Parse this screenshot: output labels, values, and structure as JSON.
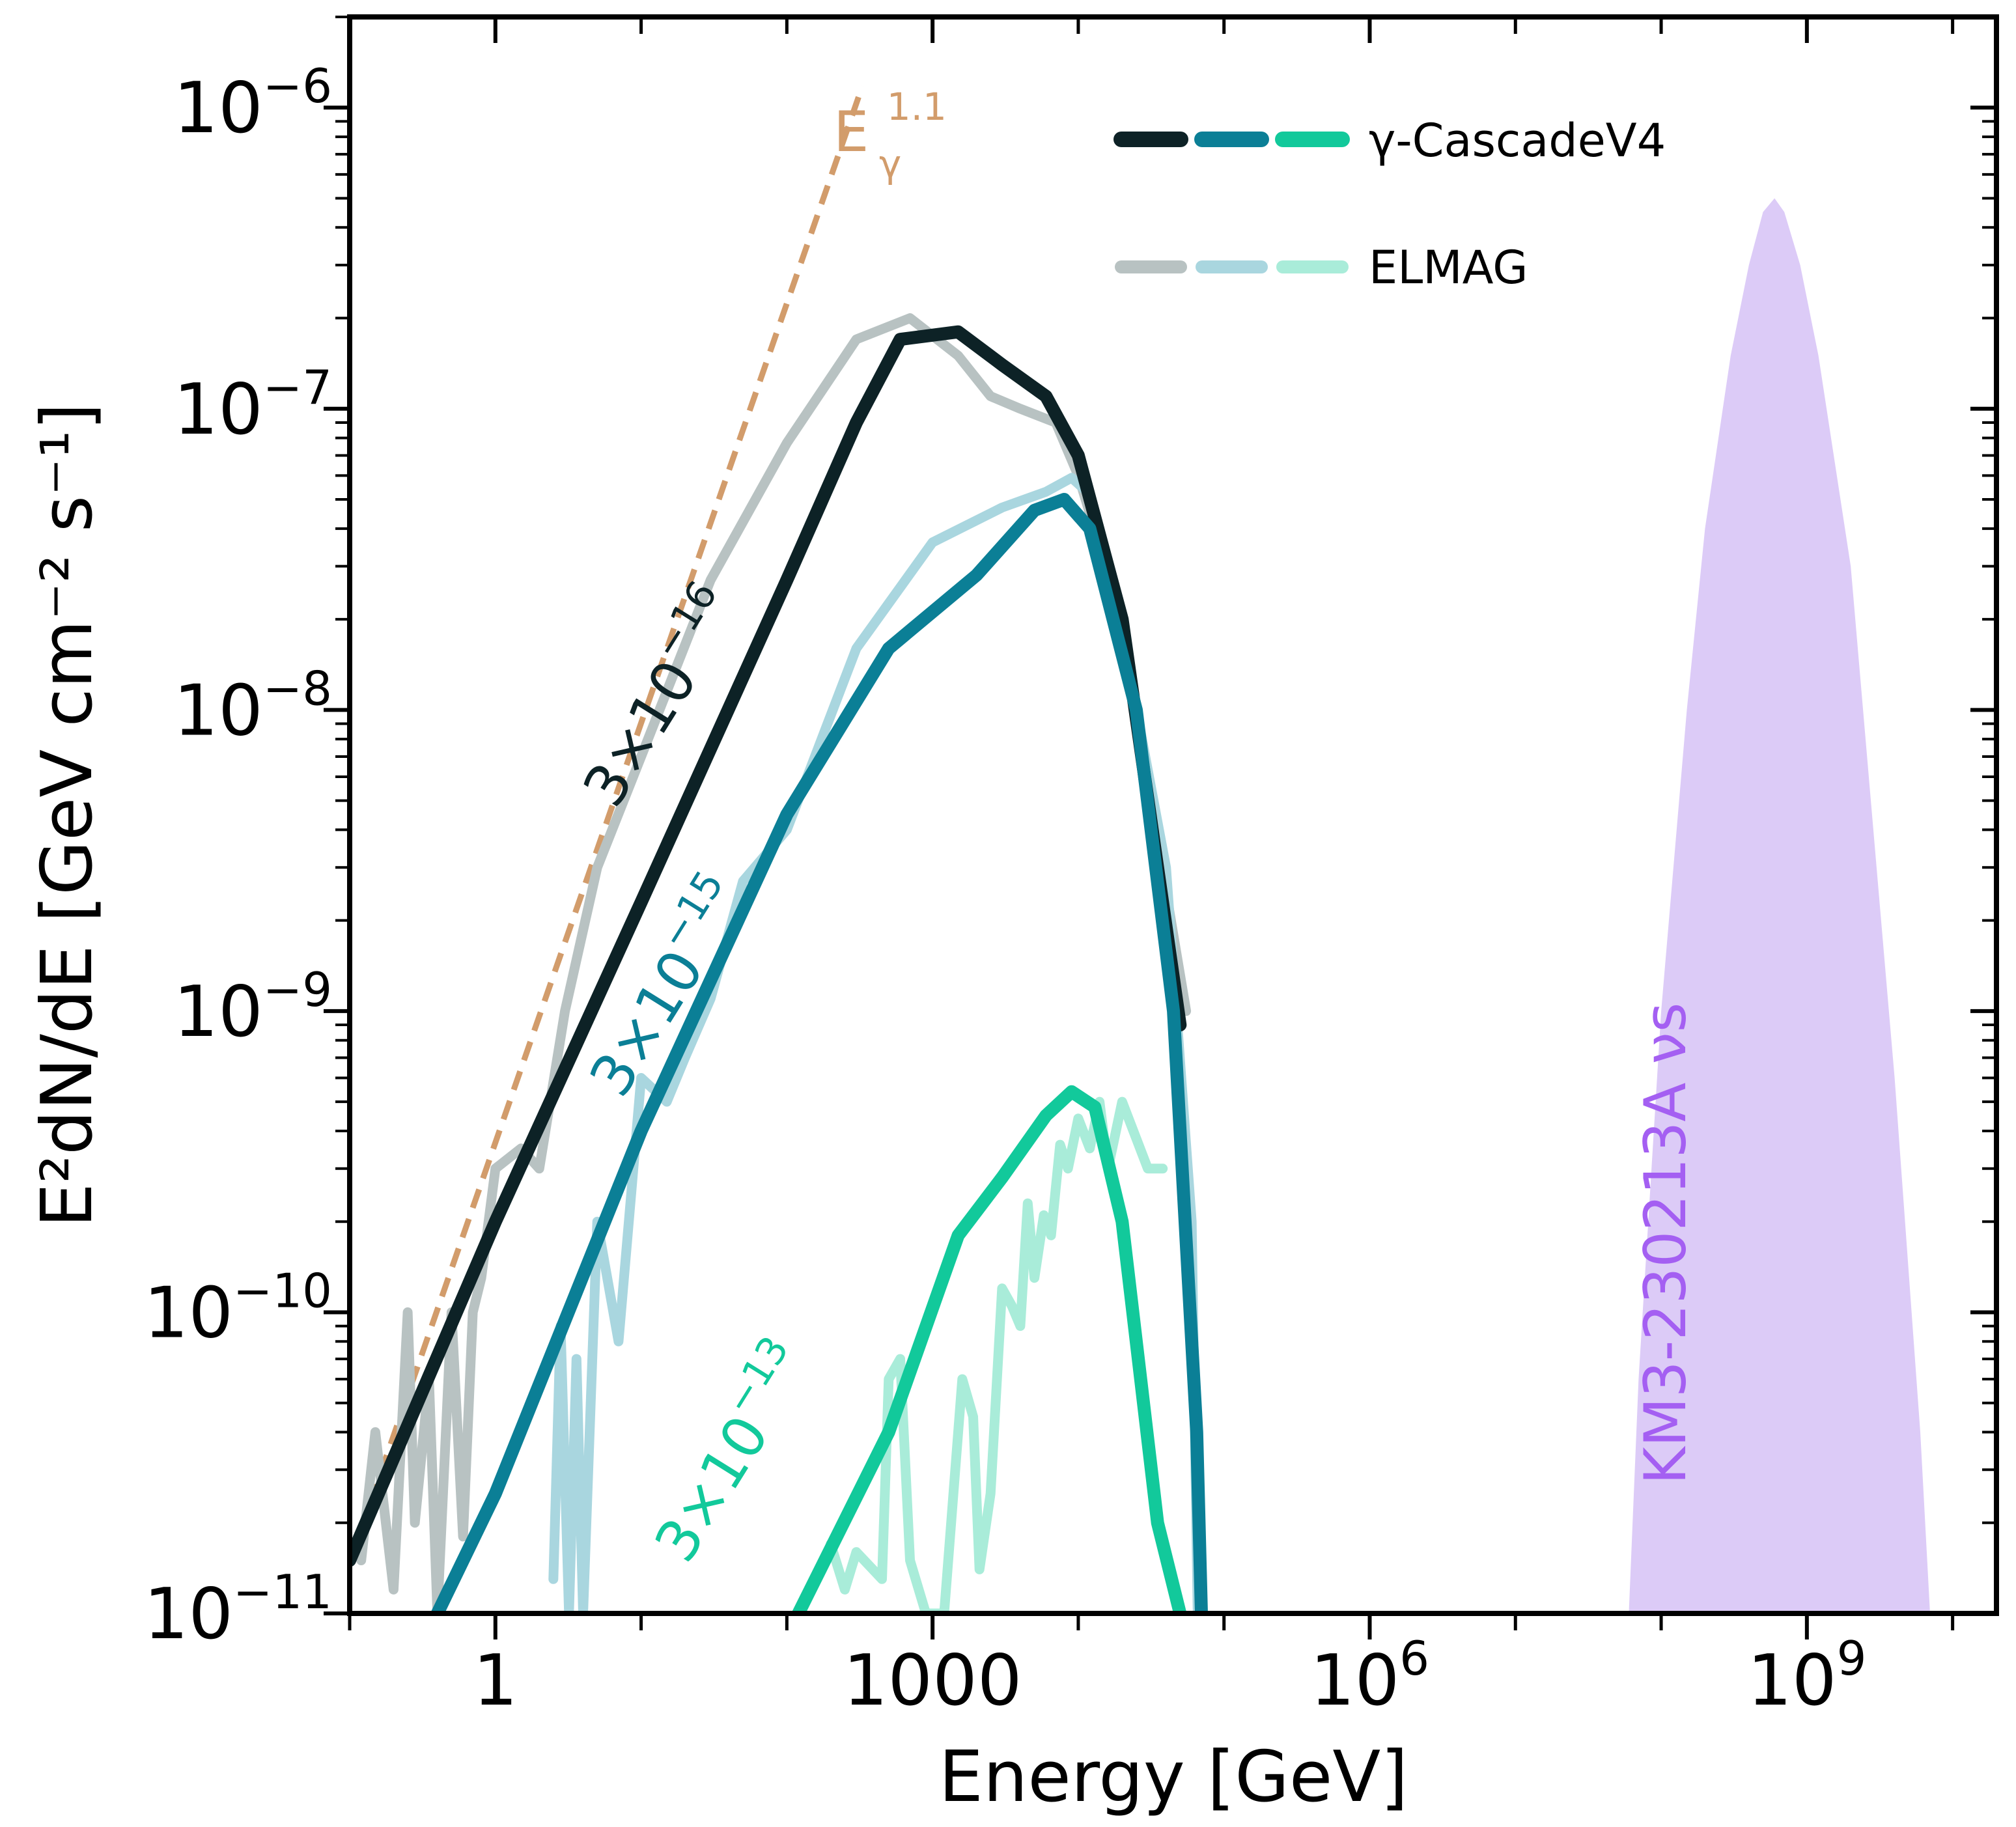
{
  "chart_data": {
    "type": "line",
    "xlabel": "Energy [GeV]",
    "ylabel": "E²dN/dE [GeV cm⁻² s⁻¹]",
    "x_scale": "log",
    "y_scale": "log",
    "xlim": [
      0.1,
      20000000000.0
    ],
    "ylim": [
      1e-11,
      2e-06
    ],
    "x_ticks": [
      {
        "value": 1,
        "label": "1",
        "sup": ""
      },
      {
        "value": 1000,
        "label": "1000",
        "sup": ""
      },
      {
        "value": 1000000,
        "label": "10",
        "sup": "6"
      },
      {
        "value": 1000000000,
        "label": "10",
        "sup": "9"
      }
    ],
    "y_ticks": [
      {
        "value": 1e-11,
        "label": "10",
        "sup": "−11"
      },
      {
        "value": 1e-10,
        "label": "10",
        "sup": "−10"
      },
      {
        "value": 1e-09,
        "label": "10",
        "sup": "−9"
      },
      {
        "value": 1e-08,
        "label": "10",
        "sup": "−8"
      },
      {
        "value": 1e-07,
        "label": "10",
        "sup": "−7"
      },
      {
        "value": 1e-06,
        "label": "10",
        "sup": "−6"
      }
    ],
    "legend": {
      "placement": "top-right",
      "entries": [
        {
          "label": "γ-CascadeV4",
          "colors": [
            "#0d2226",
            "#0b7f96",
            "#12c99b"
          ]
        },
        {
          "label": "ELMAG",
          "colors": [
            "#b8c2c2",
            "#a9d6df",
            "#a9ecd9"
          ]
        }
      ]
    },
    "reference_line": {
      "name": "E_γ^1.1 power law",
      "label_base": "E",
      "label_sub": "γ",
      "label_sup": "1.1",
      "color": "#d29c6b",
      "x": [
        0.1,
        330
      ],
      "y": [
        1.48e-11,
        1.18e-06
      ]
    },
    "series": [
      {
        "name": "γ-CascadeV4 3×10⁻¹⁶",
        "annotation": "3×10",
        "annotation_sup": "−16",
        "color": "#0d2226",
        "x": [
          0.1,
          1,
          10,
          100,
          300,
          600,
          1500,
          3000,
          6000,
          10000,
          20000,
          35000,
          50000
        ],
        "y": [
          1.5e-11,
          2e-10,
          2.3e-09,
          2.7e-08,
          9e-08,
          1.7e-07,
          1.8e-07,
          1.4e-07,
          1.1e-07,
          7e-08,
          2e-08,
          3e-09,
          9e-10
        ]
      },
      {
        "name": "γ-CascadeV4 3×10⁻¹⁵",
        "annotation": "3×10",
        "annotation_sup": "−15",
        "color": "#0b7f96",
        "x": [
          0.4,
          1,
          10,
          100,
          500,
          2000,
          5000,
          8000,
          12000,
          25000,
          45000,
          65000,
          70000
        ],
        "y": [
          1e-11,
          2.5e-11,
          4e-10,
          4.5e-09,
          1.6e-08,
          2.8e-08,
          4.6e-08,
          5e-08,
          4e-08,
          1e-08,
          1e-09,
          4e-11,
          1e-11
        ]
      },
      {
        "name": "γ-CascadeV4 3×10⁻¹³",
        "annotation": "3×10",
        "annotation_sup": "−13",
        "color": "#12c99b",
        "x": [
          120,
          500,
          1500,
          3000,
          6000,
          9000,
          13000,
          20000,
          35000,
          50000
        ],
        "y": [
          1e-11,
          4e-11,
          1.8e-10,
          2.8e-10,
          4.5e-10,
          5.4e-10,
          4.8e-10,
          2e-10,
          2e-11,
          1e-11
        ]
      },
      {
        "name": "ELMAG 3×10⁻¹⁶",
        "color": "#b8c2c2",
        "x": [
          0.12,
          0.15,
          0.2,
          0.25,
          0.28,
          0.35,
          0.4,
          0.5,
          0.6,
          0.7,
          0.8,
          1,
          1.5,
          2,
          3,
          5,
          10,
          30,
          100,
          300,
          700,
          1500,
          2500,
          4000,
          7000,
          10000,
          20000,
          40000,
          55000
        ],
        "y": [
          1.5e-11,
          4e-11,
          1.2e-11,
          1e-10,
          2e-11,
          6e-11,
          1e-11,
          1e-10,
          1.8e-11,
          1e-10,
          1.3e-10,
          3e-10,
          3.5e-10,
          3e-10,
          1e-09,
          3e-09,
          7e-09,
          2.7e-08,
          7.7e-08,
          1.7e-07,
          2e-07,
          1.5e-07,
          1.1e-07,
          1e-07,
          9e-08,
          6e-08,
          2e-08,
          2.5e-09,
          1e-09
        ]
      },
      {
        "name": "ELMAG 3×10⁻¹⁵",
        "color": "#a9d6df",
        "x": [
          2.5,
          2.8,
          3.2,
          3.6,
          4,
          5,
          7,
          10,
          15,
          20,
          30,
          50,
          100,
          300,
          1000,
          3000,
          6000,
          9000,
          12000,
          20000,
          40000,
          60000,
          66000
        ],
        "y": [
          1.3e-11,
          9e-11,
          1e-11,
          7e-11,
          1e-11,
          2e-10,
          8e-11,
          6e-10,
          5e-10,
          7e-10,
          1.1e-09,
          2.7e-09,
          4e-09,
          1.6e-08,
          3.6e-08,
          4.7e-08,
          5.3e-08,
          5.9e-08,
          5.2e-08,
          1.8e-08,
          3e-09,
          2e-10,
          1e-11
        ]
      },
      {
        "name": "ELMAG 3×10⁻¹³",
        "color": "#a9ecd9",
        "x": [
          200,
          250,
          300,
          450,
          500,
          600,
          700,
          900,
          1200,
          1600,
          1900,
          2100,
          2500,
          3000,
          3500,
          4000,
          4500,
          5000,
          5800,
          6500,
          7500,
          8500,
          10000,
          12000,
          14000,
          16000,
          20000,
          30000,
          38000
        ],
        "y": [
          1.7e-11,
          1.2e-11,
          1.6e-11,
          1.3e-11,
          6e-11,
          7e-11,
          1.5e-11,
          1e-11,
          1e-11,
          6e-11,
          4.5e-11,
          1.4e-11,
          2.5e-11,
          1.2e-10,
          1.05e-10,
          9e-11,
          2.3e-10,
          1.3e-10,
          2.1e-10,
          1.8e-10,
          3.6e-10,
          3e-10,
          4.4e-10,
          3.5e-10,
          5e-10,
          3e-10,
          5e-10,
          3e-10,
          3e-10
        ]
      }
    ],
    "filled_region": {
      "name": "KM3-230213A νs",
      "label": "KM3-230213A νs",
      "fill_color": "#dccbf7",
      "label_color": "#a45ff2",
      "x": [
        60000000,
        70000000,
        100000000,
        150000000,
        200000000,
        300000000,
        400000000,
        500000000,
        600000000,
        700000000,
        900000000,
        1200000000,
        2000000000,
        4000000000,
        6000000000,
        7000000000
      ],
      "y": [
        1e-11,
        6e-11,
        1e-09,
        1e-08,
        4e-08,
        1.5e-07,
        3e-07,
        4.5e-07,
        5e-07,
        4.5e-07,
        3e-07,
        1.5e-07,
        3e-08,
        6e-10,
        4e-11,
        1e-11
      ]
    }
  }
}
